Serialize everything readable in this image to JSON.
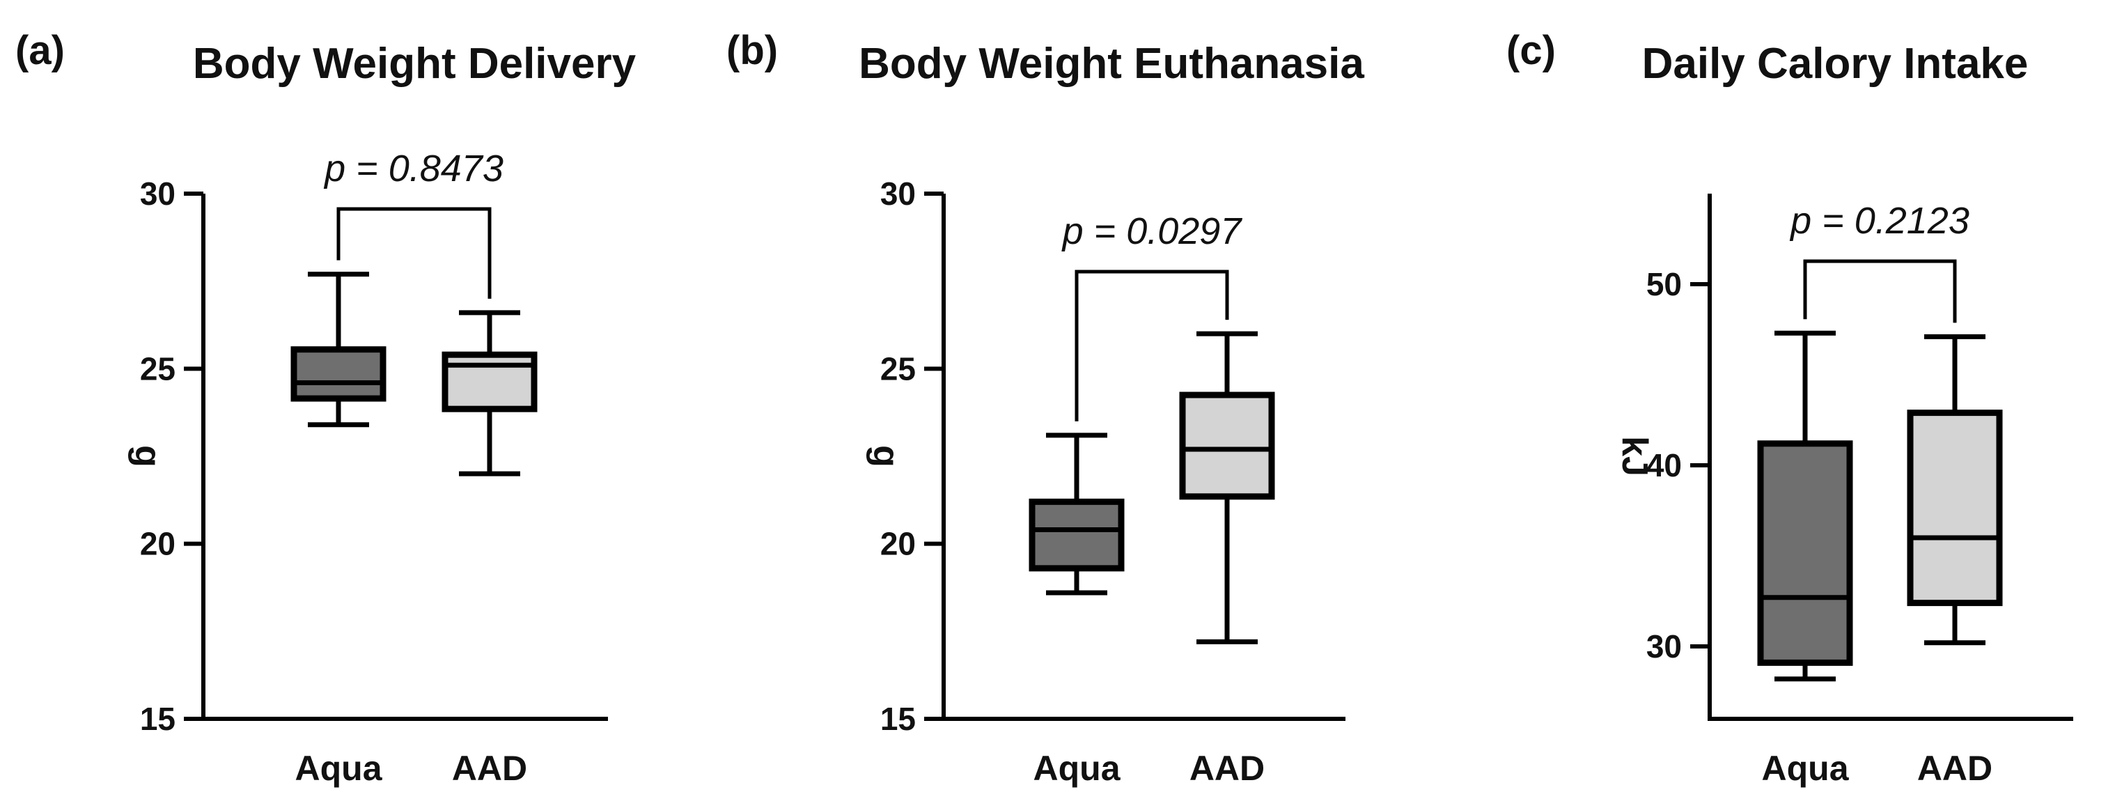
{
  "colors": {
    "Aqua": "#6f6f6f",
    "AAD": "#d4d4d4",
    "stroke": "#000000"
  },
  "chart_data": [
    {
      "type": "box",
      "panel": "(a)",
      "title": "Body Weight Delivery",
      "ylabel": "g",
      "categories": [
        "Aqua",
        "AAD"
      ],
      "ylim": [
        15,
        30
      ],
      "yticks": [
        15,
        20,
        25,
        30
      ],
      "boxes": [
        {
          "name": "Aqua",
          "min": 23.4,
          "q1": 24.15,
          "median": 24.6,
          "q3": 25.55,
          "max": 27.7
        },
        {
          "name": "AAD",
          "min": 22.0,
          "q1": 23.85,
          "median": 25.1,
          "q3": 25.4,
          "max": 26.6
        }
      ],
      "annotation": {
        "text": "p = 0.8473",
        "between": [
          "Aqua",
          "AAD"
        ]
      }
    },
    {
      "type": "box",
      "panel": "(b)",
      "title": "Body Weight Euthanasia",
      "ylabel": "g",
      "categories": [
        "Aqua",
        "AAD"
      ],
      "ylim": [
        15,
        30
      ],
      "yticks": [
        15,
        20,
        25,
        30
      ],
      "boxes": [
        {
          "name": "Aqua",
          "min": 18.6,
          "q1": 19.3,
          "median": 20.4,
          "q3": 21.2,
          "max": 23.1
        },
        {
          "name": "AAD",
          "min": 17.2,
          "q1": 21.35,
          "median": 22.7,
          "q3": 24.25,
          "max": 26.0
        }
      ],
      "annotation": {
        "text": "p = 0.0297",
        "between": [
          "Aqua",
          "AAD"
        ]
      }
    },
    {
      "type": "box",
      "panel": "(c)",
      "title": "Daily Calory Intake",
      "ylabel": "kJ",
      "categories": [
        "Aqua",
        "AAD"
      ],
      "ylim": [
        26,
        55
      ],
      "yticks": [
        30,
        40,
        50
      ],
      "boxes": [
        {
          "name": "Aqua",
          "min": 28.2,
          "q1": 29.1,
          "median": 32.7,
          "q3": 41.2,
          "max": 47.3
        },
        {
          "name": "AAD",
          "min": 30.2,
          "q1": 32.4,
          "median": 36.0,
          "q3": 42.9,
          "max": 47.1
        }
      ],
      "annotation": {
        "text": "p = 0.2123",
        "between": [
          "Aqua",
          "AAD"
        ]
      }
    }
  ]
}
